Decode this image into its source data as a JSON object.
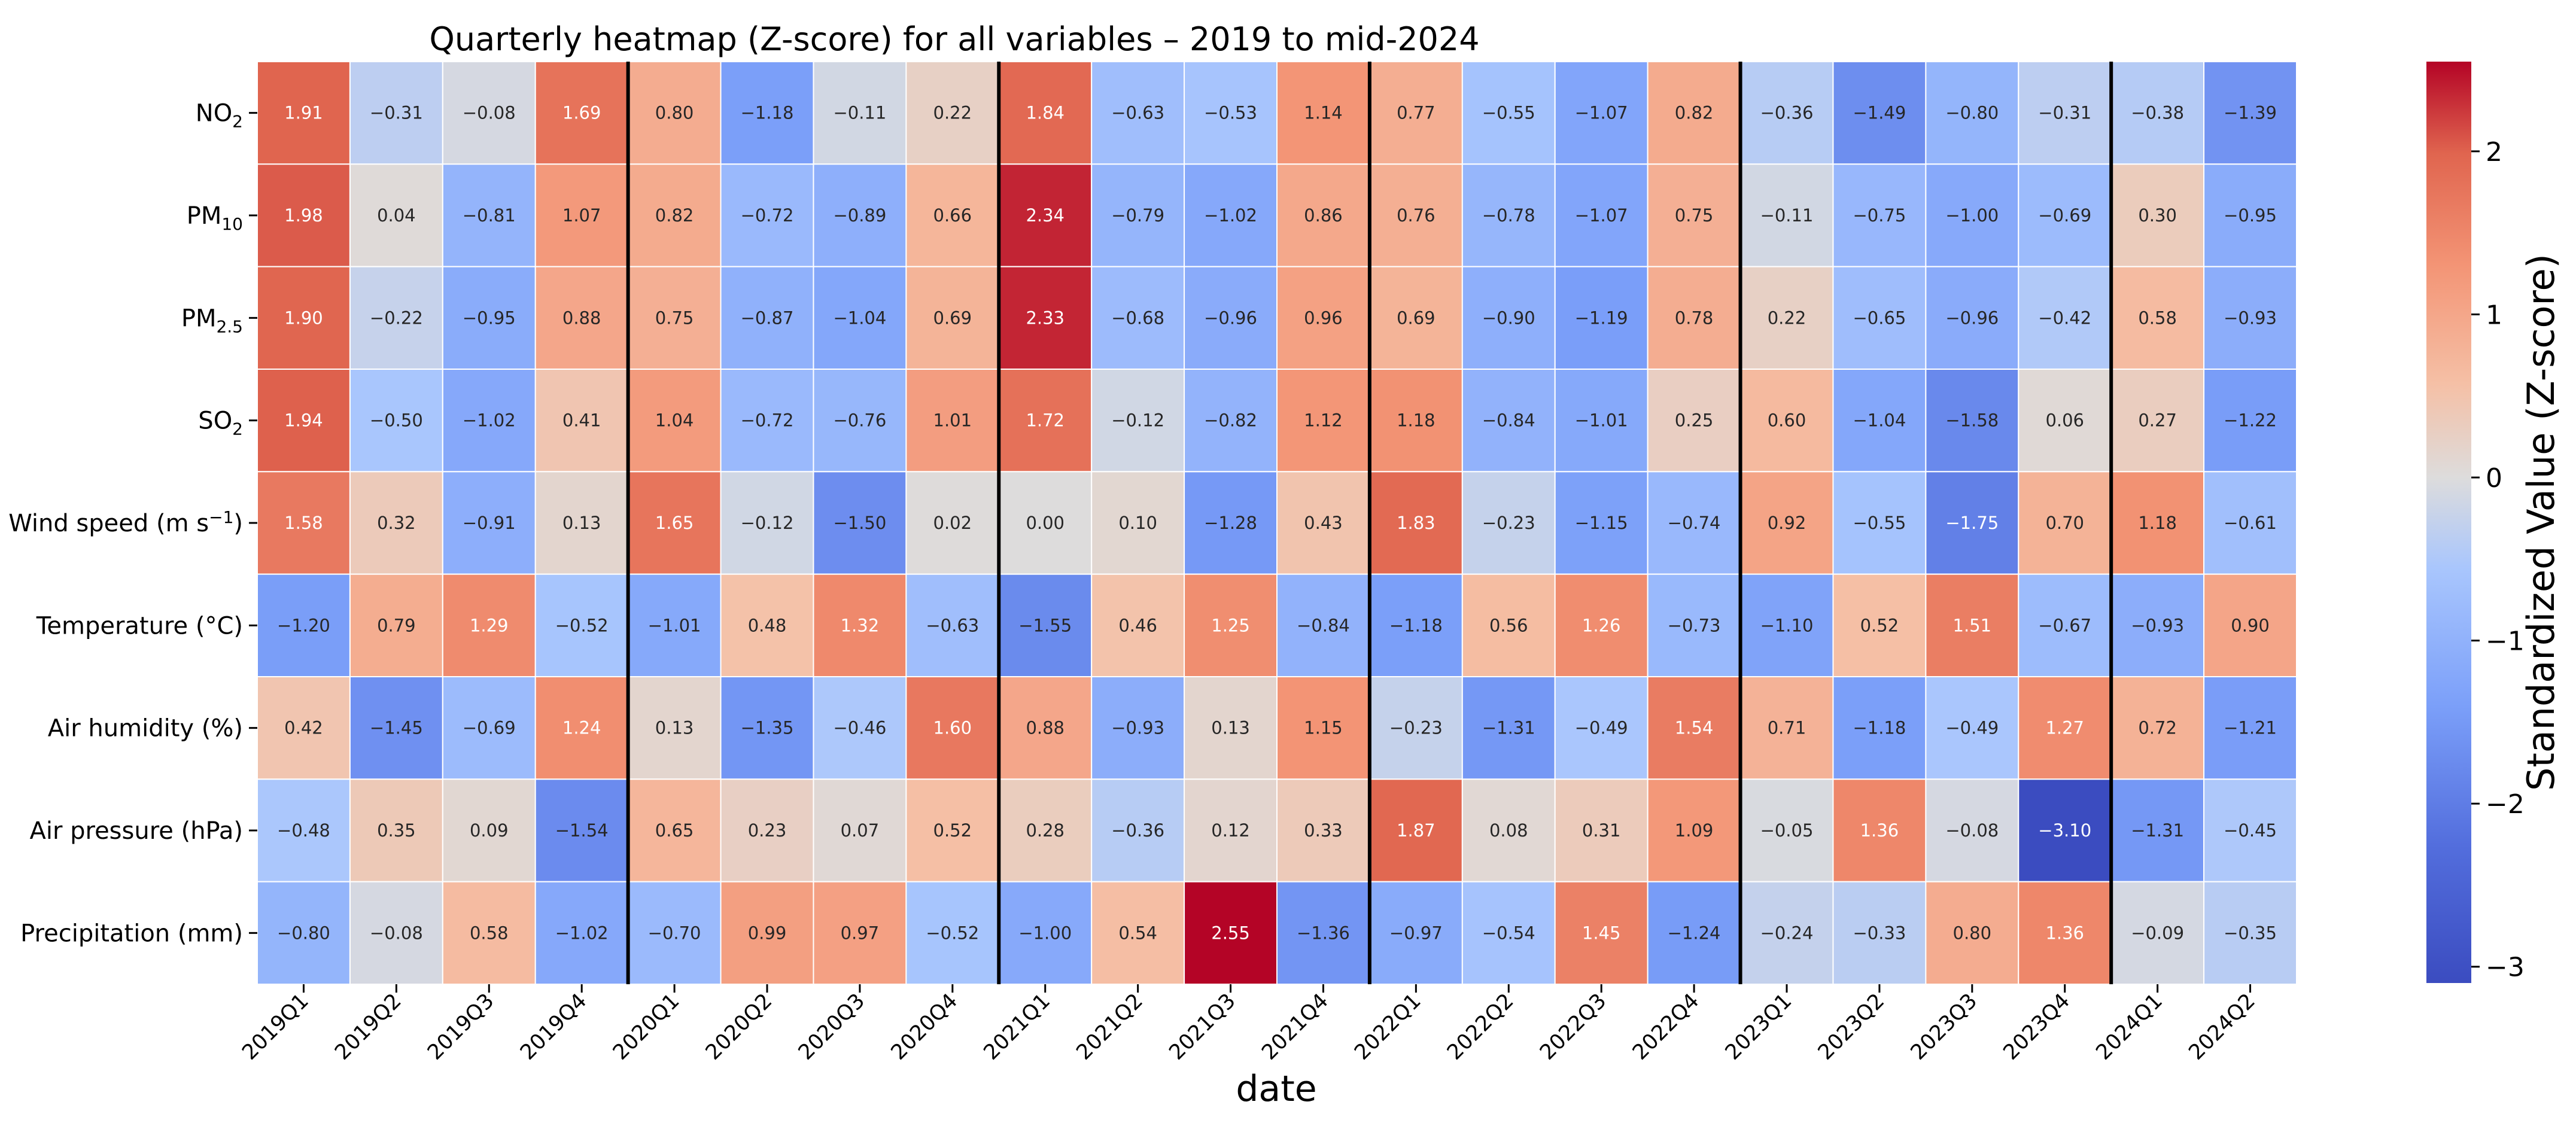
{
  "chart_data": {
    "type": "heatmap",
    "title": "Quarterly heatmap (Z-score) for all variables – 2019 to mid-2024",
    "xlabel": "date",
    "colorbar_label": "Standardized Value (Z-score)",
    "colorbar_ticks": [
      "2",
      "1",
      "0",
      "−1",
      "−2",
      "−3"
    ],
    "colorbar_tick_values": [
      2,
      1,
      0,
      -1,
      -2,
      -3
    ],
    "vmin": -3.1,
    "vmax": 2.55,
    "colormap": "coolwarm",
    "colormap_stops": [
      "#3b4cc0",
      "#dddcdc",
      "#b40426"
    ],
    "year_separator_color": "#000000",
    "year_separators_after": [
      "2019Q4",
      "2020Q4",
      "2021Q4",
      "2022Q4",
      "2023Q4"
    ],
    "columns": [
      "2019Q1",
      "2019Q2",
      "2019Q3",
      "2019Q4",
      "2020Q1",
      "2020Q2",
      "2020Q3",
      "2020Q4",
      "2021Q1",
      "2021Q2",
      "2021Q3",
      "2021Q4",
      "2022Q1",
      "2022Q2",
      "2022Q3",
      "2022Q4",
      "2023Q1",
      "2023Q2",
      "2023Q3",
      "2023Q4",
      "2024Q1",
      "2024Q2"
    ],
    "rows": [
      {
        "label": "NO",
        "sub": "2",
        "sup": "",
        "values": [
          1.91,
          -0.31,
          -0.08,
          1.69,
          0.8,
          -1.18,
          -0.11,
          0.22,
          1.84,
          -0.63,
          -0.53,
          1.14,
          0.77,
          -0.55,
          -1.07,
          0.82,
          -0.36,
          -1.49,
          -0.8,
          -0.31,
          -0.38,
          -1.39
        ]
      },
      {
        "label": "PM",
        "sub": "10",
        "sup": "",
        "values": [
          1.98,
          0.04,
          -0.81,
          1.07,
          0.82,
          -0.72,
          -0.89,
          0.66,
          2.34,
          -0.79,
          -1.02,
          0.86,
          0.76,
          -0.78,
          -1.07,
          0.75,
          -0.11,
          -0.75,
          -1.0,
          -0.69,
          0.3,
          -0.95
        ]
      },
      {
        "label": "PM",
        "sub": "2.5",
        "sup": "",
        "values": [
          1.9,
          -0.22,
          -0.95,
          0.88,
          0.75,
          -0.87,
          -1.04,
          0.69,
          2.33,
          -0.68,
          -0.96,
          0.96,
          0.69,
          -0.9,
          -1.19,
          0.78,
          0.22,
          -0.65,
          -0.96,
          -0.42,
          0.58,
          -0.93
        ]
      },
      {
        "label": "SO",
        "sub": "2",
        "sup": "",
        "values": [
          1.94,
          -0.5,
          -1.02,
          0.41,
          1.04,
          -0.72,
          -0.76,
          1.01,
          1.72,
          -0.12,
          -0.82,
          1.12,
          1.18,
          -0.84,
          -1.01,
          0.25,
          0.6,
          -1.04,
          -1.58,
          0.06,
          0.27,
          -1.22
        ]
      },
      {
        "label": "Wind speed (m s",
        "sub": "",
        "sup": "−1",
        "tail": ")",
        "values": [
          1.58,
          0.32,
          -0.91,
          0.13,
          1.65,
          -0.12,
          -1.5,
          0.02,
          0.0,
          0.1,
          -1.28,
          0.43,
          1.83,
          -0.23,
          -1.15,
          -0.74,
          0.92,
          -0.55,
          -1.75,
          0.7,
          1.18,
          -0.61
        ]
      },
      {
        "label": "Temperature (°C)",
        "sub": "",
        "sup": "",
        "values": [
          -1.2,
          0.79,
          1.29,
          -0.52,
          -1.01,
          0.48,
          1.32,
          -0.63,
          -1.55,
          0.46,
          1.25,
          -0.84,
          -1.18,
          0.56,
          1.26,
          -0.73,
          -1.1,
          0.52,
          1.51,
          -0.67,
          -0.93,
          0.9
        ]
      },
      {
        "label": "Air humidity (%)",
        "sub": "",
        "sup": "",
        "values": [
          0.42,
          -1.45,
          -0.69,
          1.24,
          0.13,
          -1.35,
          -0.46,
          1.6,
          0.88,
          -0.93,
          0.13,
          1.15,
          -0.23,
          -1.31,
          -0.49,
          1.54,
          0.71,
          -1.18,
          -0.49,
          1.27,
          0.72,
          -1.21
        ]
      },
      {
        "label": "Air pressure (hPa)",
        "sub": "",
        "sup": "",
        "values": [
          -0.48,
          0.35,
          0.09,
          -1.54,
          0.65,
          0.23,
          0.07,
          0.52,
          0.28,
          -0.36,
          0.12,
          0.33,
          1.87,
          0.08,
          0.31,
          1.09,
          -0.05,
          1.36,
          -0.08,
          -3.1,
          -1.31,
          -0.45
        ]
      },
      {
        "label": "Precipitation (mm)",
        "sub": "",
        "sup": "",
        "values": [
          -0.8,
          -0.08,
          0.58,
          -1.02,
          -0.7,
          0.99,
          0.97,
          -0.52,
          -1.0,
          0.54,
          2.55,
          -1.36,
          -0.97,
          -0.54,
          1.45,
          -1.24,
          -0.24,
          -0.33,
          0.8,
          1.36,
          -0.09,
          -0.35
        ]
      }
    ]
  }
}
